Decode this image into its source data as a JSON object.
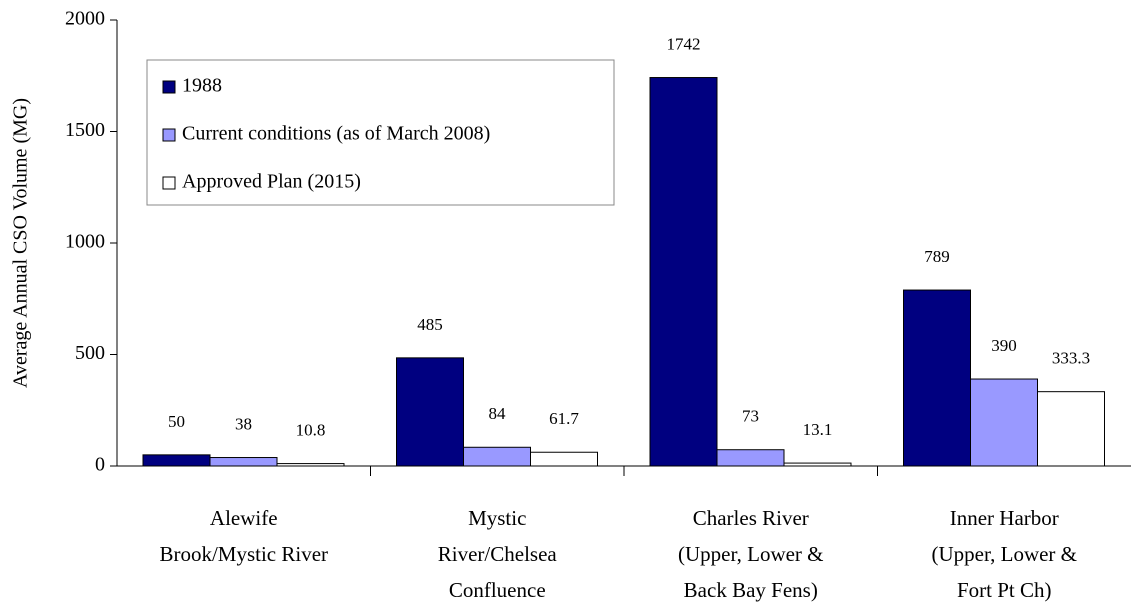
{
  "chart_data": {
    "type": "bar",
    "ylabel": "Average Annual CSO Volume (MG)",
    "categories": [
      [
        "Alewife",
        "Brook/Mystic River"
      ],
      [
        "Mystic",
        "River/Chelsea",
        "Confluence"
      ],
      [
        "Charles River",
        "(Upper, Lower &",
        "Back Bay Fens)"
      ],
      [
        "Inner Harbor",
        "(Upper, Lower &",
        "Fort Pt Ch)"
      ]
    ],
    "series": [
      {
        "name": "1988",
        "color": "#000080",
        "values": [
          50,
          485,
          1742,
          789
        ]
      },
      {
        "name": "Current conditions (as of March 2008)",
        "color": "#9999ff",
        "values": [
          38,
          84,
          73,
          390
        ]
      },
      {
        "name": "Approved Plan (2015)",
        "color": "#ffffff",
        "values": [
          10.8,
          61.7,
          13.1,
          333.3
        ]
      }
    ],
    "ylim": [
      0,
      2000
    ],
    "yticks": [
      0,
      500,
      1000,
      1500,
      2000
    ],
    "grid": false,
    "legend": "upper left"
  }
}
